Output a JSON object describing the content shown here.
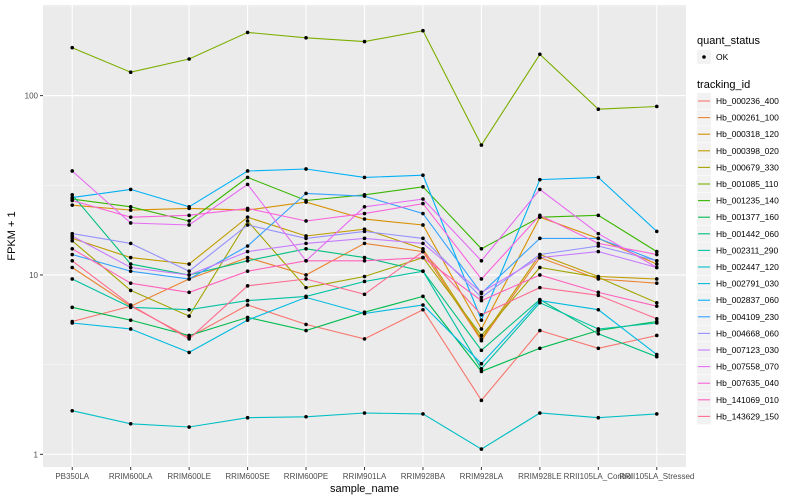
{
  "chart_data": {
    "type": "line",
    "title": "",
    "xlabel": "sample_name",
    "ylabel": "FPKM + 1",
    "y_scale": "log10",
    "ylim": [
      0.85,
      320
    ],
    "y_ticks": [
      1,
      10,
      100
    ],
    "y_tick_labels": [
      "1",
      "10",
      "100"
    ],
    "categories": [
      "PB350LA",
      "RRIM600LA",
      "RRIM600LE",
      "RRIM600SE",
      "RRIM600PE",
      "RRIM901LA",
      "RRIM928BA",
      "RRIM928LA",
      "RRIM928LE",
      "RRII105LA_Control",
      "RRII105LA_Stressed"
    ],
    "category_labels": [
      "PB350LA",
      "RRIM600LA",
      "RRIM600LE",
      "RRIM600SE",
      "RRIM600PE",
      "RRIM901LA",
      "RRIM928BA",
      "RRIM928LA",
      "RRIM928LE",
      "RRII105LA_Control",
      "RRII105LA_Stressed"
    ],
    "legend_shape": {
      "title": "quant_status",
      "items": [
        "OK"
      ]
    },
    "legend_color_title": "tracking_id",
    "series": [
      {
        "name": "Hb_000236_400",
        "color": "#F8766D",
        "values": [
          5.5,
          6.7,
          4.5,
          6.8,
          5.3,
          4.4,
          6.4,
          2.0,
          4.9,
          3.9,
          4.6
        ]
      },
      {
        "name": "Hb_000261_100",
        "color": "#EA8331",
        "values": [
          11.0,
          6.7,
          9.5,
          12.5,
          10.0,
          15.0,
          13.5,
          4.3,
          12.5,
          9.5,
          9.0
        ]
      },
      {
        "name": "Hb_000318_120",
        "color": "#D89000",
        "values": [
          24.5,
          23.0,
          23.5,
          23.0,
          25.5,
          20.5,
          19.0,
          5.0,
          21.0,
          16.0,
          11.5
        ]
      },
      {
        "name": "Hb_000398_020",
        "color": "#C09B00",
        "values": [
          16.0,
          12.5,
          11.5,
          21.0,
          16.5,
          18.0,
          14.0,
          4.4,
          13.0,
          9.8,
          9.5
        ]
      },
      {
        "name": "Hb_000679_330",
        "color": "#A3A500",
        "values": [
          15.5,
          8.2,
          5.9,
          20.0,
          8.5,
          9.8,
          12.5,
          4.6,
          11.0,
          9.7,
          7.0
        ]
      },
      {
        "name": "Hb_001085_110",
        "color": "#7CAE00",
        "values": [
          185.0,
          135.0,
          160.0,
          225.0,
          210.0,
          200.0,
          230.0,
          53.0,
          170.0,
          84.0,
          87.0
        ]
      },
      {
        "name": "Hb_001235_140",
        "color": "#39B600",
        "values": [
          26.5,
          24.0,
          20.0,
          35.0,
          26.0,
          28.0,
          31.0,
          14.0,
          21.0,
          21.5,
          13.5
        ]
      },
      {
        "name": "Hb_001377_160",
        "color": "#00BB4E",
        "values": [
          6.6,
          5.6,
          4.6,
          5.8,
          4.9,
          6.2,
          7.6,
          2.9,
          3.9,
          4.9,
          5.5
        ]
      },
      {
        "name": "Hb_001442_060",
        "color": "#00BF7D",
        "values": [
          28.0,
          11.5,
          10.0,
          12.0,
          14.0,
          12.5,
          10.5,
          3.8,
          7.3,
          4.7,
          3.5
        ]
      },
      {
        "name": "Hb_002311_290",
        "color": "#00C1A3",
        "values": [
          9.5,
          6.6,
          6.4,
          7.2,
          7.6,
          9.2,
          10.5,
          3.0,
          7.0,
          5.0,
          5.4
        ]
      },
      {
        "name": "Hb_002447_120",
        "color": "#00BFC4",
        "values": [
          1.75,
          1.48,
          1.42,
          1.6,
          1.62,
          1.7,
          1.68,
          1.07,
          1.7,
          1.6,
          1.68
        ]
      },
      {
        "name": "Hb_002791_030",
        "color": "#00BAE0",
        "values": [
          5.4,
          5.0,
          3.7,
          5.6,
          7.5,
          6.1,
          6.8,
          3.2,
          7.2,
          6.4,
          3.6
        ]
      },
      {
        "name": "Hb_002837_060",
        "color": "#00B0F6",
        "values": [
          27.0,
          30.0,
          24.0,
          38.0,
          39.0,
          35.0,
          36.0,
          5.6,
          34.0,
          35.0,
          17.5
        ]
      },
      {
        "name": "Hb_004109_230",
        "color": "#35A2FF",
        "values": [
          13.0,
          10.5,
          9.5,
          14.5,
          28.5,
          27.5,
          22.0,
          7.9,
          16.0,
          16.0,
          12.0
        ]
      },
      {
        "name": "Hb_004668_060",
        "color": "#9590FF",
        "values": [
          17.0,
          15.0,
          10.5,
          19.0,
          16.0,
          17.5,
          16.0,
          7.5,
          13.0,
          14.5,
          12.0
        ]
      },
      {
        "name": "Hb_007123_030",
        "color": "#C77CFF",
        "values": [
          16.5,
          11.0,
          10.0,
          13.5,
          15.0,
          16.0,
          15.0,
          8.0,
          12.5,
          13.5,
          11.0
        ]
      },
      {
        "name": "Hb_007558_070",
        "color": "#E76BF3",
        "values": [
          38.0,
          19.5,
          19.0,
          32.0,
          12.0,
          24.0,
          26.5,
          12.0,
          30.0,
          17.0,
          11.0
        ]
      },
      {
        "name": "Hb_007635_040",
        "color": "#FA62DB",
        "values": [
          26.0,
          21.0,
          21.5,
          23.5,
          20.0,
          22.0,
          25.0,
          9.5,
          21.5,
          15.0,
          13.0
        ]
      },
      {
        "name": "Hb_141069_010",
        "color": "#FF62BC",
        "values": [
          14.0,
          9.0,
          8.0,
          10.5,
          12.0,
          12.0,
          12.5,
          7.2,
          10.0,
          8.0,
          6.7
        ]
      },
      {
        "name": "Hb_143629_150",
        "color": "#FF6C91",
        "values": [
          12.0,
          6.8,
          4.4,
          8.7,
          9.5,
          7.8,
          13.5,
          6.0,
          8.5,
          7.7,
          5.7
        ]
      }
    ]
  }
}
